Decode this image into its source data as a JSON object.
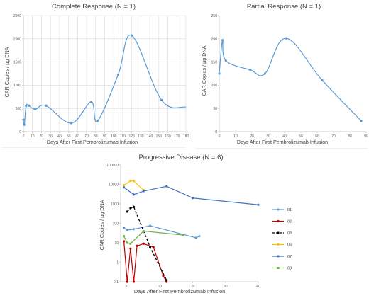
{
  "colors": {
    "blue": "#5b9bd5",
    "red": "#c00000",
    "black": "#000000",
    "gold": "#ffc000",
    "navy": "#4472c4",
    "green": "#70ad47"
  },
  "chart_data": [
    {
      "type": "line",
      "title": "Complete Response (N = 1)",
      "xlabel": "Days After First Pembrolizumab Infusion",
      "ylabel": "CAR Copies / µg DNA",
      "xlim": [
        0,
        180
      ],
      "ylim": [
        0,
        2500
      ],
      "xticks": [
        "0",
        "10",
        "20",
        "30",
        "40",
        "50",
        "60",
        "70",
        "80",
        "90",
        "100",
        "110",
        "120",
        "130",
        "140",
        "150",
        "160",
        "170",
        "180"
      ],
      "yticks": [
        "0",
        "500",
        "1000",
        "1500",
        "2000",
        "2500"
      ],
      "grid": true,
      "series": [
        {
          "color": "#5b9bd5",
          "x": [
            0,
            1,
            3,
            6,
            13,
            25,
            53,
            75,
            82,
            105,
            120,
            153,
            180
          ],
          "y": [
            260,
            150,
            550,
            560,
            480,
            560,
            185,
            640,
            230,
            1230,
            2070,
            680,
            530
          ],
          "markers": [
            true,
            true,
            true,
            true,
            true,
            true,
            true,
            true,
            true,
            true,
            true,
            true,
            false
          ]
        }
      ]
    },
    {
      "type": "line",
      "title": "Partial Response (N = 1)",
      "xlabel": "Days After First Pembrolizumab Infusion",
      "ylabel": "CAR Copies / µg DNA",
      "xlim": [
        0,
        90
      ],
      "ylim": [
        0,
        250
      ],
      "xticks": [
        "0",
        "10",
        "20",
        "30",
        "40",
        "50",
        "60",
        "70",
        "80",
        "90"
      ],
      "yticks": [
        "0",
        "50",
        "100",
        "150",
        "200",
        "250"
      ],
      "grid": false,
      "series": [
        {
          "color": "#5b9bd5",
          "x": [
            0,
            2,
            4,
            19,
            28,
            41,
            63,
            87
          ],
          "y": [
            125,
            197,
            153,
            133,
            125,
            201,
            111,
            23
          ]
        }
      ]
    },
    {
      "type": "line",
      "title": "Progressive Disease (N = 6)",
      "xlabel": "Days After First Pembrolizumab Infusion",
      "ylabel": "CAR Copies / µg DNA",
      "yscale": "log",
      "xlim": [
        -2,
        40
      ],
      "ylim": [
        0.1,
        100000
      ],
      "xticks": [
        "0",
        "10",
        "20",
        "30",
        "40"
      ],
      "yticks": [
        "0.1",
        "1",
        "10",
        "100",
        "1000",
        "10000",
        "100000"
      ],
      "grid": false,
      "legend": "right",
      "series": [
        {
          "name": "01",
          "color": "#5b9bd5",
          "dash": false,
          "x": [
            -1,
            0,
            2,
            7,
            21,
            22
          ],
          "y": [
            60,
            45,
            50,
            75,
            18,
            22
          ]
        },
        {
          "name": "02",
          "color": "#c00000",
          "dash": false,
          "x": [
            -1,
            0,
            1,
            2,
            3,
            5,
            8,
            11,
            12
          ],
          "y": [
            12,
            0.1,
            5,
            0.1,
            7,
            9,
            6,
            0.2,
            0.1
          ]
        },
        {
          "name": "03",
          "color": "#000000",
          "dash": true,
          "x": [
            0,
            1,
            2,
            7,
            12
          ],
          "y": [
            400,
            600,
            700,
            6,
            0.12
          ]
        },
        {
          "name": "06",
          "color": "#ffc000",
          "dash": false,
          "x": [
            -1,
            1,
            2,
            5
          ],
          "y": [
            9000,
            15000,
            15000,
            5000
          ]
        },
        {
          "name": "07",
          "color": "#4472c4",
          "dash": false,
          "x": [
            -1,
            2,
            5,
            12,
            20,
            40
          ],
          "y": [
            7000,
            3000,
            4500,
            8000,
            2000,
            900
          ]
        },
        {
          "name": "08",
          "color": "#70ad47",
          "dash": false,
          "x": [
            -1,
            0,
            1,
            5,
            17
          ],
          "y": [
            22,
            10,
            9,
            40,
            25
          ]
        }
      ]
    }
  ]
}
